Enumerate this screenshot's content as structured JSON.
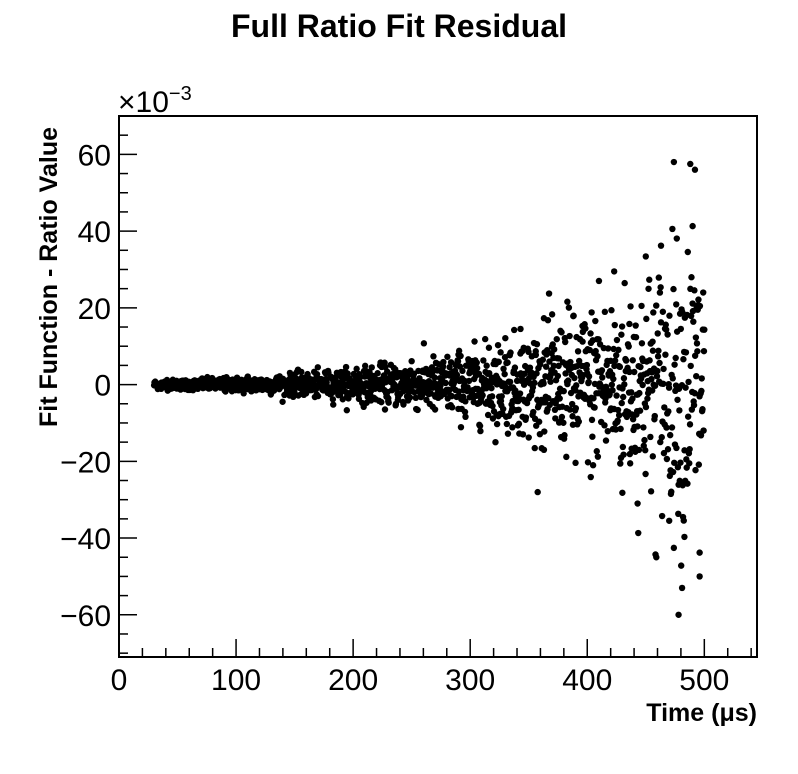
{
  "chart_data": {
    "type": "scatter",
    "title": "Full Ratio Fit Residual",
    "xlabel": "Time (μs)",
    "ylabel": "Fit Function - Ratio Value",
    "y_multiplier": "×10",
    "y_multiplier_exponent": "−3",
    "xlim": [
      0,
      545
    ],
    "ylim": [
      -71,
      70
    ],
    "x_ticks": [
      0,
      100,
      200,
      300,
      400,
      500
    ],
    "x_tick_labels": [
      "0",
      "100",
      "200",
      "300",
      "400",
      "500"
    ],
    "y_ticks": [
      -60,
      -40,
      -20,
      0,
      20,
      40,
      60
    ],
    "y_tick_labels": [
      "−60",
      "−40",
      "−20",
      "0",
      "20",
      "40",
      "60"
    ],
    "grid": false,
    "legend": "none",
    "marker_color": "#000000",
    "x_range_of_points": [
      30,
      500
    ],
    "series": [
      {
        "points": [
          [
            31,
            0.4
          ],
          [
            36,
            -1.1
          ],
          [
            41,
            1.2
          ],
          [
            47,
            -0.6
          ],
          [
            53,
            0.9
          ],
          [
            59,
            -1.4
          ],
          [
            65,
            0.2
          ],
          [
            71,
            1.6
          ],
          [
            78,
            -0.9
          ],
          [
            84,
            0.7
          ],
          [
            91,
            -1.8
          ],
          [
            97,
            1.3
          ],
          [
            104,
            -0.3
          ],
          [
            110,
            2.1
          ],
          [
            117,
            -1.5
          ],
          [
            123,
            0.5
          ],
          [
            130,
            -2.2
          ],
          [
            136,
            1.8
          ],
          [
            143,
            -0.8
          ],
          [
            150,
            2.6
          ],
          [
            156,
            -2.4
          ],
          [
            163,
            1.1
          ],
          [
            170,
            -3.0
          ],
          [
            176,
            3.2
          ],
          [
            183,
            -1.2
          ],
          [
            190,
            2.0
          ],
          [
            196,
            -3.6
          ],
          [
            203,
            4.1
          ],
          [
            210,
            -2.0
          ],
          [
            216,
            0.6
          ],
          [
            223,
            5.0
          ],
          [
            230,
            -4.3
          ],
          [
            236,
            2.5
          ],
          [
            243,
            -5.2
          ],
          [
            250,
            6.1
          ],
          [
            256,
            -1.8
          ],
          [
            263,
            3.5
          ],
          [
            270,
            -6.5
          ],
          [
            276,
            4.8
          ],
          [
            283,
            -2.9
          ],
          [
            290,
            7.8
          ],
          [
            296,
            -8.4
          ],
          [
            303,
            5.7
          ],
          [
            310,
            -3.1
          ],
          [
            316,
            9.6
          ],
          [
            323,
            -10.3
          ],
          [
            330,
            12.1
          ],
          [
            336,
            -6.2
          ],
          [
            343,
            14.5
          ],
          [
            350,
            -13.8
          ],
          [
            356,
            8.7
          ],
          [
            363,
            -17.0
          ],
          [
            370,
            18.3
          ],
          [
            376,
            -9.9
          ],
          [
            383,
            21.6
          ],
          [
            390,
            -20.4
          ],
          [
            396,
            11.2
          ],
          [
            403,
            -24.1
          ],
          [
            410,
            27.0
          ],
          [
            416,
            -14.6
          ],
          [
            423,
            29.5
          ],
          [
            430,
            -28.2
          ],
          [
            436,
            15.8
          ],
          [
            443,
            -31.0
          ],
          [
            450,
            33.4
          ],
          [
            456,
            -18.7
          ],
          [
            463,
            36.2
          ],
          [
            470,
            -35.5
          ],
          [
            476,
            20.9
          ],
          [
            483,
            -39.7
          ],
          [
            490,
            41.3
          ],
          [
            496,
            -43.8
          ],
          [
            459,
            -45.0
          ],
          [
            474,
            58.0
          ],
          [
            478,
            -60.0
          ],
          [
            481,
            -53.0
          ],
          [
            488,
            57.5
          ],
          [
            492,
            56.0
          ],
          [
            496,
            -50.0
          ]
        ]
      }
    ]
  }
}
